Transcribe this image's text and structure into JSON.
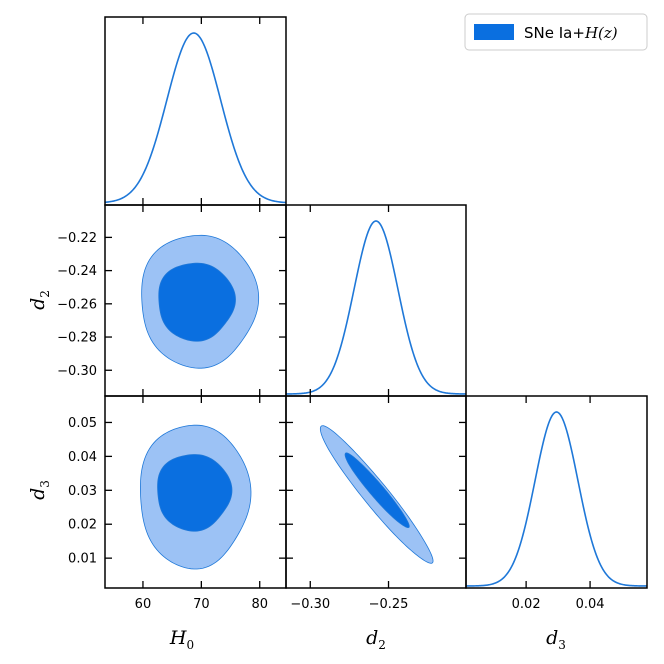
{
  "legend": {
    "label": "SNe Ia+H(z)",
    "prefix": "SNe Ia+",
    "math": "H(z)"
  },
  "colors": {
    "line": "#1f78d8",
    "inner": "#0a6fe0",
    "outer": "#9cc2f5"
  },
  "chart_data": {
    "type": "corner",
    "parameters": [
      {
        "name": "H0",
        "label_main": "H",
        "label_sub": "0",
        "mean": 68.7,
        "sigma": 4.6,
        "range": [
          53.5,
          84.5
        ],
        "ticks": [
          60,
          70,
          80
        ],
        "tick_labels": [
          "60",
          "70",
          "80"
        ]
      },
      {
        "name": "d2",
        "label_main": "d",
        "label_sub": "2",
        "mean": -0.258,
        "sigma": 0.014,
        "range": [
          -0.3155,
          -0.2005
        ],
        "ticks": [
          -0.3,
          -0.25
        ],
        "tick_labels": [
          "−0.30",
          "−0.25"
        ],
        "y_ticks": [
          -0.3,
          -0.28,
          -0.26,
          -0.24,
          -0.22
        ],
        "y_tick_labels": [
          "−0.30",
          "−0.28",
          "−0.26",
          "−0.24",
          "−0.22"
        ]
      },
      {
        "name": "d3",
        "label_main": "d",
        "label_sub": "3",
        "mean": 0.0295,
        "sigma": 0.0067,
        "range": [
          0.0012,
          0.0578
        ],
        "ticks": [
          0.02,
          0.04
        ],
        "tick_labels": [
          "0.02",
          "0.04"
        ],
        "y_ticks": [
          0.01,
          0.02,
          0.03,
          0.04,
          0.05
        ],
        "y_tick_labels": [
          "0.01",
          "0.02",
          "0.03",
          "0.04",
          "0.05"
        ]
      }
    ],
    "contours": [
      {
        "x": "H0",
        "y": "d2",
        "correlation": 0.0,
        "levels_68": {
          "x": [
            62.5,
            75.6
          ],
          "y": [
            -0.282,
            -0.235
          ]
        },
        "levels_95": {
          "x": [
            59.5,
            79.5
          ],
          "y": [
            -0.298,
            -0.218
          ]
        }
      },
      {
        "x": "H0",
        "y": "d3",
        "correlation": 0.0,
        "levels_68": {
          "x": [
            62.3,
            75.0
          ],
          "y": [
            0.0182,
            0.0408
          ]
        },
        "levels_95": {
          "x": [
            59.3,
            78.2
          ],
          "y": [
            0.0072,
            0.0496
          ]
        }
      },
      {
        "x": "d2",
        "y": "d3",
        "correlation": -0.96,
        "levels_68": {
          "x": [
            -0.278,
            -0.237
          ],
          "y": [
            0.019,
            0.041
          ]
        },
        "levels_95": {
          "x": [
            -0.294,
            -0.222
          ],
          "y": [
            0.0085,
            0.049
          ]
        }
      }
    ],
    "legend_position": "top-right",
    "grid": false
  }
}
